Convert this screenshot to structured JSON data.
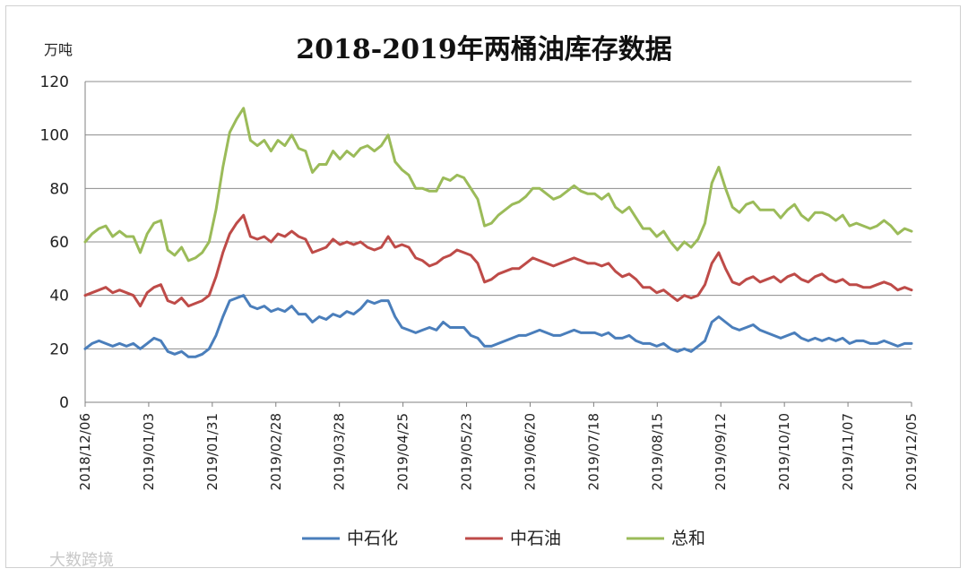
{
  "chart_data": {
    "type": "line",
    "title": "2018-2019年两桶油库存数据",
    "ylabel": "万吨",
    "xlabel": "",
    "ylim": [
      0,
      120
    ],
    "yticks": [
      0,
      20,
      40,
      60,
      80,
      100,
      120
    ],
    "x_tick_labels": [
      "2018/12/06",
      "2019/01/03",
      "2019/01/31",
      "2019/02/28",
      "2019/03/28",
      "2019/04/25",
      "2019/05/23",
      "2019/06/20",
      "2019/07/18",
      "2019/08/15",
      "2019/09/12",
      "2019/10/10",
      "2019/11/07",
      "2019/12/05"
    ],
    "grid": "horizontal",
    "legend_position": "bottom",
    "series": [
      {
        "name": "中石化",
        "color": "#4a7ebb",
        "values": [
          20,
          22,
          23,
          22,
          21,
          22,
          21,
          22,
          20,
          22,
          24,
          23,
          19,
          18,
          19,
          17,
          17,
          18,
          20,
          25,
          32,
          38,
          39,
          40,
          36,
          35,
          36,
          34,
          35,
          34,
          36,
          33,
          33,
          30,
          32,
          31,
          33,
          32,
          34,
          33,
          35,
          38,
          37,
          38,
          38,
          32,
          28,
          27,
          26,
          27,
          28,
          27,
          30,
          28,
          28,
          28,
          25,
          24,
          21,
          21,
          22,
          23,
          24,
          25,
          25,
          26,
          27,
          26,
          25,
          25,
          26,
          27,
          26,
          26,
          26,
          25,
          26,
          24,
          24,
          25,
          23,
          22,
          22,
          21,
          22,
          20,
          19,
          20,
          19,
          21,
          23,
          30,
          32,
          30,
          28,
          27,
          28,
          29,
          27,
          26,
          25,
          24,
          25,
          26,
          24,
          23,
          24,
          23,
          24,
          23,
          24,
          22,
          23,
          23,
          22,
          22,
          23,
          22,
          21,
          22,
          22
        ]
      },
      {
        "name": "中石油",
        "color": "#be4b48",
        "values": [
          40,
          41,
          42,
          43,
          41,
          42,
          41,
          40,
          36,
          41,
          43,
          44,
          38,
          37,
          39,
          36,
          37,
          38,
          40,
          47,
          56,
          63,
          67,
          70,
          62,
          61,
          62,
          60,
          63,
          62,
          64,
          62,
          61,
          56,
          57,
          58,
          61,
          59,
          60,
          59,
          60,
          58,
          57,
          58,
          62,
          58,
          59,
          58,
          54,
          53,
          51,
          52,
          54,
          55,
          57,
          56,
          55,
          52,
          45,
          46,
          48,
          49,
          50,
          50,
          52,
          54,
          53,
          52,
          51,
          52,
          53,
          54,
          53,
          52,
          52,
          51,
          52,
          49,
          47,
          48,
          46,
          43,
          43,
          41,
          42,
          40,
          38,
          40,
          39,
          40,
          44,
          52,
          56,
          50,
          45,
          44,
          46,
          47,
          45,
          46,
          47,
          45,
          47,
          48,
          46,
          45,
          47,
          48,
          46,
          45,
          46,
          44,
          44,
          43,
          43,
          44,
          45,
          44,
          42,
          43,
          42
        ]
      },
      {
        "name": "总和",
        "color": "#9bbb59",
        "values": [
          60,
          63,
          65,
          66,
          62,
          64,
          62,
          62,
          56,
          63,
          67,
          68,
          57,
          55,
          58,
          53,
          54,
          56,
          60,
          72,
          88,
          101,
          106,
          110,
          98,
          96,
          98,
          94,
          98,
          96,
          100,
          95,
          94,
          86,
          89,
          89,
          94,
          91,
          94,
          92,
          95,
          96,
          94,
          96,
          100,
          90,
          87,
          85,
          80,
          80,
          79,
          79,
          84,
          83,
          85,
          84,
          80,
          76,
          66,
          67,
          70,
          72,
          74,
          75,
          77,
          80,
          80,
          78,
          76,
          77,
          79,
          81,
          79,
          78,
          78,
          76,
          78,
          73,
          71,
          73,
          69,
          65,
          65,
          62,
          64,
          60,
          57,
          60,
          58,
          61,
          67,
          82,
          88,
          80,
          73,
          71,
          74,
          75,
          72,
          72,
          72,
          69,
          72,
          74,
          70,
          68,
          71,
          71,
          70,
          68,
          70,
          66,
          67,
          66,
          65,
          66,
          68,
          66,
          63,
          65,
          64
        ]
      }
    ]
  },
  "watermark": "大数跨境"
}
